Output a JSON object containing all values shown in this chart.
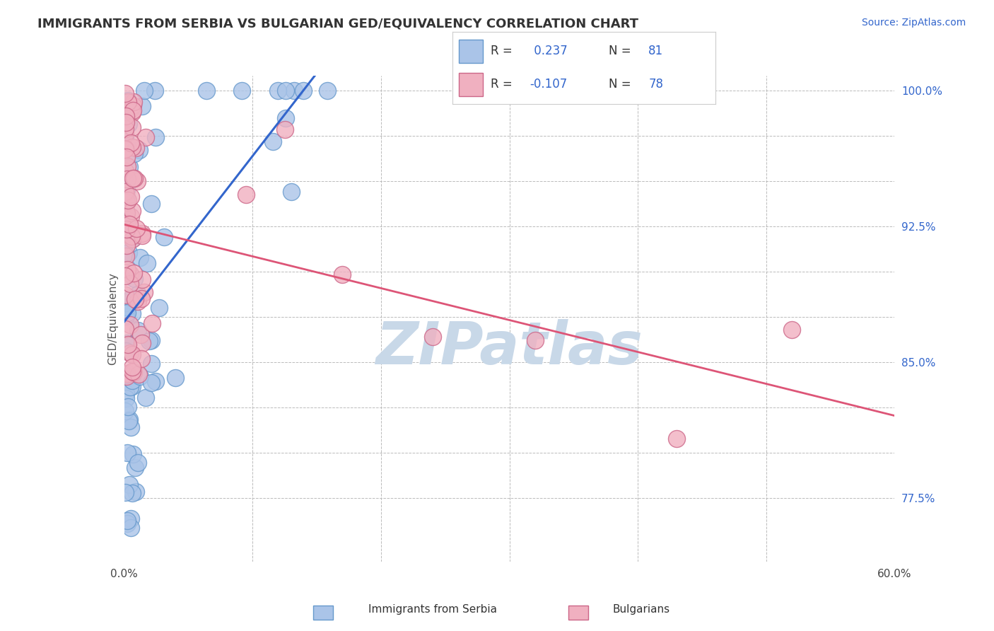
{
  "title": "IMMIGRANTS FROM SERBIA VS BULGARIAN GED/EQUIVALENCY CORRELATION CHART",
  "source_text": "Source: ZipAtlas.com",
  "ylabel": "GED/Equivalency",
  "xlim": [
    0.0,
    0.6
  ],
  "ylim": [
    0.74,
    1.008
  ],
  "serbia_color": "#6699cc",
  "serbia_fill": "#aac4e8",
  "bulgaria_color": "#cc6688",
  "bulgaria_fill": "#f0b0c0",
  "trend_serbia_color": "#3366cc",
  "trend_bulgaria_color": "#dd5577",
  "watermark": "ZIPatlas",
  "watermark_color": "#c8d8e8",
  "background_color": "#ffffff",
  "grid_color": "#bbbbbb",
  "n_serbia": 81,
  "n_bulgaria": 78,
  "R_serbia": 0.237,
  "R_bulgaria": -0.107
}
